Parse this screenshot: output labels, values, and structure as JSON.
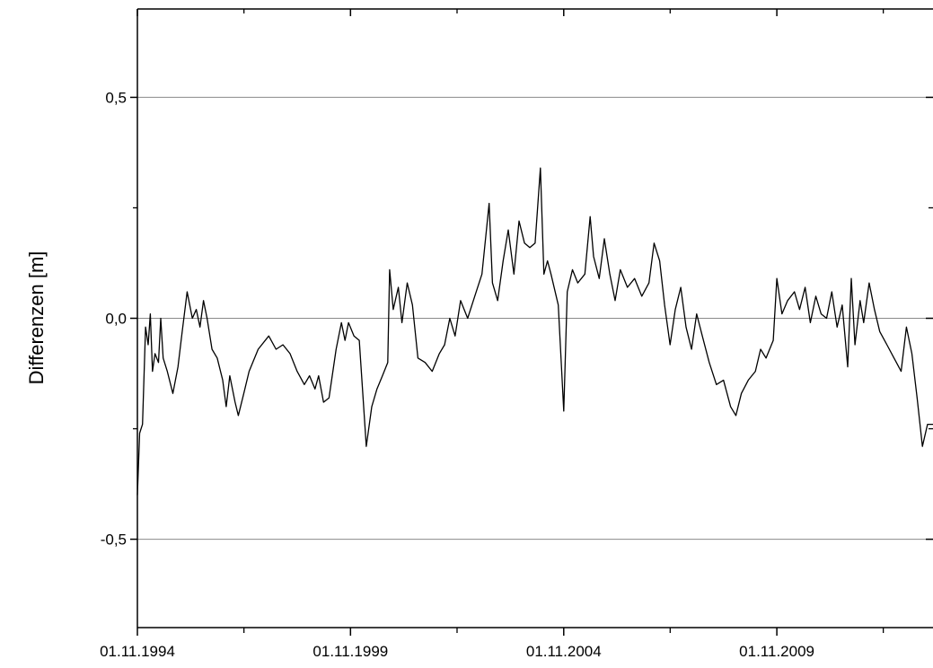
{
  "chart_data": {
    "type": "line",
    "ylabel": "Differenzen [m]",
    "xlabel": "",
    "title": "",
    "x_range": [
      "1994-11-01",
      "2013-07-01"
    ],
    "ylim": [
      -0.7,
      0.7
    ],
    "y_ticks": [
      {
        "value": -0.5,
        "label": "-0,5"
      },
      {
        "value": 0.0,
        "label": "0,0"
      },
      {
        "value": 0.5,
        "label": "0,5"
      }
    ],
    "x_ticks": [
      {
        "value": "1994-11-01",
        "label": "01.11.1994"
      },
      {
        "value": "1999-11-01",
        "label": "01.11.1999"
      },
      {
        "value": "2004-11-01",
        "label": "01.11.2004"
      },
      {
        "value": "2009-11-01",
        "label": "01.11.2009"
      }
    ],
    "grid": {
      "horizontal": true,
      "lines_at": [
        -0.5,
        0.0,
        0.5
      ]
    },
    "series": [
      {
        "color": "#000000",
        "points": [
          [
            "1994-11-01",
            -0.4
          ],
          [
            "1994-11-20",
            -0.26
          ],
          [
            "1994-12-15",
            -0.24
          ],
          [
            "1995-01-10",
            -0.02
          ],
          [
            "1995-02-01",
            -0.06
          ],
          [
            "1995-02-20",
            0.01
          ],
          [
            "1995-03-10",
            -0.12
          ],
          [
            "1995-04-01",
            -0.08
          ],
          [
            "1995-05-01",
            -0.1
          ],
          [
            "1995-05-20",
            0.0
          ],
          [
            "1995-06-10",
            -0.09
          ],
          [
            "1995-07-15",
            -0.12
          ],
          [
            "1995-09-01",
            -0.17
          ],
          [
            "1995-10-15",
            -0.11
          ],
          [
            "1995-11-20",
            -0.03
          ],
          [
            "1996-01-01",
            0.06
          ],
          [
            "1996-02-15",
            0.0
          ],
          [
            "1996-03-20",
            0.02
          ],
          [
            "1996-04-20",
            -0.02
          ],
          [
            "1996-05-20",
            0.04
          ],
          [
            "1996-06-20",
            0.0
          ],
          [
            "1996-08-01",
            -0.07
          ],
          [
            "1996-09-15",
            -0.09
          ],
          [
            "1996-11-01",
            -0.14
          ],
          [
            "1996-12-01",
            -0.2
          ],
          [
            "1997-01-01",
            -0.13
          ],
          [
            "1997-02-15",
            -0.19
          ],
          [
            "1997-03-15",
            -0.22
          ],
          [
            "1997-05-01",
            -0.17
          ],
          [
            "1997-06-15",
            -0.12
          ],
          [
            "1997-09-01",
            -0.07
          ],
          [
            "1997-12-01",
            -0.04
          ],
          [
            "1998-02-01",
            -0.07
          ],
          [
            "1998-04-01",
            -0.06
          ],
          [
            "1998-06-01",
            -0.08
          ],
          [
            "1998-08-01",
            -0.12
          ],
          [
            "1998-10-01",
            -0.15
          ],
          [
            "1998-11-15",
            -0.13
          ],
          [
            "1999-01-01",
            -0.16
          ],
          [
            "1999-02-01",
            -0.13
          ],
          [
            "1999-03-15",
            -0.19
          ],
          [
            "1999-05-01",
            -0.18
          ],
          [
            "1999-07-01",
            -0.07
          ],
          [
            "1999-08-15",
            -0.01
          ],
          [
            "1999-09-15",
            -0.05
          ],
          [
            "1999-10-15",
            -0.01
          ],
          [
            "1999-12-01",
            -0.04
          ],
          [
            "2000-01-15",
            -0.05
          ],
          [
            "2000-03-15",
            -0.29
          ],
          [
            "2000-05-01",
            -0.2
          ],
          [
            "2000-06-15",
            -0.16
          ],
          [
            "2000-08-01",
            -0.13
          ],
          [
            "2000-09-15",
            -0.1
          ],
          [
            "2000-10-01",
            0.11
          ],
          [
            "2000-11-01",
            0.02
          ],
          [
            "2000-12-15",
            0.07
          ],
          [
            "2001-01-15",
            -0.01
          ],
          [
            "2001-03-01",
            0.08
          ],
          [
            "2001-04-15",
            0.03
          ],
          [
            "2001-06-01",
            -0.09
          ],
          [
            "2001-08-01",
            -0.1
          ],
          [
            "2001-10-01",
            -0.12
          ],
          [
            "2001-12-01",
            -0.08
          ],
          [
            "2002-01-15",
            -0.06
          ],
          [
            "2002-03-01",
            0.0
          ],
          [
            "2002-04-15",
            -0.04
          ],
          [
            "2002-06-01",
            0.04
          ],
          [
            "2002-08-01",
            0.0
          ],
          [
            "2002-10-01",
            0.05
          ],
          [
            "2002-12-01",
            0.1
          ],
          [
            "2003-02-01",
            0.26
          ],
          [
            "2003-03-01",
            0.08
          ],
          [
            "2003-04-15",
            0.04
          ],
          [
            "2003-06-01",
            0.13
          ],
          [
            "2003-07-15",
            0.2
          ],
          [
            "2003-09-01",
            0.1
          ],
          [
            "2003-10-15",
            0.22
          ],
          [
            "2003-12-01",
            0.17
          ],
          [
            "2004-01-15",
            0.16
          ],
          [
            "2004-03-01",
            0.17
          ],
          [
            "2004-04-15",
            0.34
          ],
          [
            "2004-05-15",
            0.1
          ],
          [
            "2004-06-15",
            0.13
          ],
          [
            "2004-07-15",
            0.1
          ],
          [
            "2004-09-15",
            0.03
          ],
          [
            "2004-11-01",
            -0.21
          ],
          [
            "2004-12-01",
            0.06
          ],
          [
            "2005-01-15",
            0.11
          ],
          [
            "2005-03-01",
            0.08
          ],
          [
            "2005-05-01",
            0.1
          ],
          [
            "2005-06-15",
            0.23
          ],
          [
            "2005-07-15",
            0.14
          ],
          [
            "2005-09-01",
            0.09
          ],
          [
            "2005-10-15",
            0.18
          ],
          [
            "2005-12-01",
            0.1
          ],
          [
            "2006-01-15",
            0.04
          ],
          [
            "2006-03-01",
            0.11
          ],
          [
            "2006-05-01",
            0.07
          ],
          [
            "2006-07-01",
            0.09
          ],
          [
            "2006-09-01",
            0.05
          ],
          [
            "2006-11-01",
            0.08
          ],
          [
            "2006-12-15",
            0.17
          ],
          [
            "2007-02-01",
            0.13
          ],
          [
            "2007-03-15",
            0.03
          ],
          [
            "2007-05-01",
            -0.06
          ],
          [
            "2007-06-15",
            0.02
          ],
          [
            "2007-08-01",
            0.07
          ],
          [
            "2007-09-15",
            -0.02
          ],
          [
            "2007-11-01",
            -0.07
          ],
          [
            "2007-12-15",
            0.01
          ],
          [
            "2008-02-01",
            -0.04
          ],
          [
            "2008-04-01",
            -0.1
          ],
          [
            "2008-06-01",
            -0.15
          ],
          [
            "2008-08-01",
            -0.14
          ],
          [
            "2008-10-01",
            -0.2
          ],
          [
            "2008-11-15",
            -0.22
          ],
          [
            "2009-01-01",
            -0.17
          ],
          [
            "2009-03-01",
            -0.14
          ],
          [
            "2009-05-01",
            -0.12
          ],
          [
            "2009-06-15",
            -0.07
          ],
          [
            "2009-08-01",
            -0.09
          ],
          [
            "2009-10-01",
            -0.05
          ],
          [
            "2009-11-01",
            0.09
          ],
          [
            "2009-12-15",
            0.01
          ],
          [
            "2010-02-01",
            0.04
          ],
          [
            "2010-04-01",
            0.06
          ],
          [
            "2010-05-15",
            0.02
          ],
          [
            "2010-07-01",
            0.07
          ],
          [
            "2010-08-15",
            -0.01
          ],
          [
            "2010-10-01",
            0.05
          ],
          [
            "2010-11-15",
            0.01
          ],
          [
            "2011-01-01",
            0.0
          ],
          [
            "2011-02-15",
            0.06
          ],
          [
            "2011-04-01",
            -0.02
          ],
          [
            "2011-05-15",
            0.03
          ],
          [
            "2011-07-01",
            -0.11
          ],
          [
            "2011-08-01",
            0.09
          ],
          [
            "2011-09-01",
            -0.06
          ],
          [
            "2011-10-15",
            0.04
          ],
          [
            "2011-11-15",
            -0.01
          ],
          [
            "2012-01-01",
            0.08
          ],
          [
            "2012-02-15",
            0.02
          ],
          [
            "2012-04-01",
            -0.03
          ],
          [
            "2012-06-01",
            -0.06
          ],
          [
            "2012-08-01",
            -0.09
          ],
          [
            "2012-10-01",
            -0.12
          ],
          [
            "2012-11-15",
            -0.02
          ],
          [
            "2013-01-01",
            -0.08
          ],
          [
            "2013-02-15",
            -0.18
          ],
          [
            "2013-04-01",
            -0.29
          ],
          [
            "2013-05-15",
            -0.24
          ],
          [
            "2013-07-01",
            -0.24
          ]
        ]
      }
    ]
  }
}
